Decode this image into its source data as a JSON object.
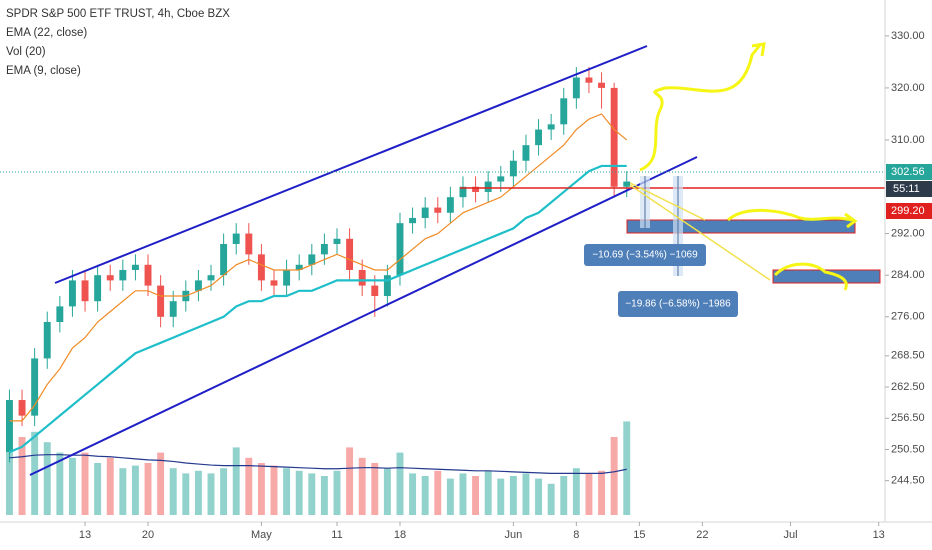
{
  "chart_data": {
    "type": "candlestick",
    "title": "SPDR S&P 500 ETF TRUST, 4h, Cboe BZX",
    "x": [
      -6,
      -5,
      -4,
      -3,
      -2,
      -1,
      0,
      1,
      2,
      3,
      4,
      5,
      6,
      7,
      8,
      9,
      10,
      11,
      12,
      13,
      14,
      15,
      16,
      17,
      18,
      19,
      20,
      21,
      22,
      23,
      24,
      25,
      26,
      27,
      28,
      29,
      30,
      31,
      32,
      33,
      34,
      35,
      36,
      37,
      38,
      39,
      40,
      41,
      42,
      43
    ],
    "open": [
      250,
      260,
      257,
      268,
      275,
      278,
      283,
      279,
      284,
      283,
      285,
      286,
      282,
      276,
      279,
      281,
      283,
      284,
      290,
      292,
      288,
      283,
      282,
      285,
      286,
      288,
      290,
      291,
      285,
      282,
      280,
      284,
      294,
      295,
      297,
      296,
      299,
      301,
      300,
      302,
      303,
      306,
      309,
      312,
      313,
      318,
      322,
      321,
      320,
      301
    ],
    "high": [
      262,
      262,
      270,
      277,
      280,
      285,
      285,
      286,
      286,
      287,
      288,
      288,
      284,
      281,
      283,
      285,
      286,
      292,
      294,
      294,
      290,
      285,
      287,
      288,
      290,
      292,
      293,
      293,
      287,
      284,
      286,
      296,
      297,
      299,
      299,
      301,
      303,
      303,
      304,
      305,
      308,
      311,
      314,
      315,
      320,
      324,
      324,
      323,
      321,
      304
    ],
    "low": [
      248,
      255,
      255,
      266,
      273,
      276,
      277,
      277,
      281,
      281,
      283,
      280,
      274,
      274,
      277,
      279,
      281,
      282,
      288,
      286,
      281,
      280,
      280,
      283,
      284,
      286,
      288,
      283,
      280,
      276,
      278,
      282,
      292,
      293,
      294,
      294,
      297,
      298,
      298,
      300,
      301,
      304,
      307,
      310,
      311,
      316,
      319,
      316,
      299,
      299
    ],
    "close": [
      260,
      257,
      268,
      275,
      278,
      283,
      279,
      284,
      283,
      285,
      286,
      282,
      276,
      279,
      281,
      283,
      284,
      290,
      292,
      288,
      283,
      282,
      285,
      286,
      288,
      290,
      291,
      285,
      282,
      280,
      284,
      294,
      295,
      297,
      296,
      299,
      301,
      300,
      302,
      303,
      306,
      309,
      312,
      313,
      318,
      322,
      321,
      320,
      301,
      302
    ],
    "up_color": "#26a69a",
    "down_color": "#ef5350",
    "ema22": {
      "name": "EMA (22, close)",
      "color": "#1fbfc9",
      "values": [
        250,
        251,
        253,
        255,
        257,
        259,
        261,
        263,
        265,
        267,
        269,
        270,
        271,
        272,
        273,
        274,
        275,
        276,
        278,
        279,
        279,
        280,
        280,
        281,
        281,
        282,
        283,
        283,
        283,
        283,
        283,
        284,
        285,
        286,
        287,
        288,
        289,
        290,
        291,
        292,
        293,
        295,
        296,
        298,
        300,
        302,
        304,
        305,
        305,
        305
      ]
    },
    "volume": {
      "name": "Vol (20)",
      "ylim": [
        0,
        250
      ],
      "values": [
        180,
        150,
        160,
        140,
        120,
        110,
        120,
        100,
        110,
        90,
        95,
        100,
        120,
        90,
        80,
        85,
        80,
        90,
        130,
        110,
        100,
        95,
        90,
        85,
        80,
        75,
        85,
        130,
        110,
        100,
        90,
        120,
        80,
        75,
        85,
        70,
        80,
        75,
        85,
        70,
        75,
        80,
        70,
        60,
        75,
        90,
        80,
        85,
        150,
        180
      ],
      "ma_color": "#24388f",
      "ma": [
        110,
        112,
        115,
        116,
        116,
        115,
        115,
        113,
        112,
        110,
        108,
        106,
        105,
        103,
        100,
        98,
        96,
        95,
        95,
        95,
        94,
        93,
        92,
        91,
        90,
        89,
        89,
        90,
        91,
        91,
        90,
        91,
        90,
        89,
        88,
        87,
        86,
        85,
        85,
        84,
        83,
        82,
        81,
        80,
        80,
        80,
        80,
        80,
        83,
        88
      ]
    },
    "ema9": {
      "name": "EMA (9, close)",
      "color": "#f08a24",
      "values": [
        256,
        256,
        259,
        263,
        266,
        270,
        272,
        275,
        277,
        279,
        281,
        281,
        280,
        280,
        280,
        281,
        282,
        284,
        286,
        287,
        286,
        285,
        285,
        285,
        286,
        287,
        288,
        287,
        286,
        285,
        285,
        287,
        289,
        291,
        292,
        294,
        296,
        297,
        298,
        299,
        301,
        303,
        305,
        307,
        309,
        312,
        314,
        315,
        312,
        310
      ]
    },
    "xlim": [
      -6.75,
      63.5
    ],
    "xticks": [
      {
        "value": 0,
        "label": "13"
      },
      {
        "value": 5,
        "label": "20"
      },
      {
        "value": 14,
        "label": "May"
      },
      {
        "value": 20,
        "label": "11"
      },
      {
        "value": 25,
        "label": "18"
      },
      {
        "value": 34,
        "label": "Jun"
      },
      {
        "value": 39,
        "label": "8"
      },
      {
        "value": 44,
        "label": "15"
      },
      {
        "value": 49,
        "label": "22"
      },
      {
        "value": 56,
        "label": "Jul"
      },
      {
        "value": 63,
        "label": "13"
      }
    ],
    "ylim": [
      237.9,
      336.9
    ],
    "yticks": [
      {
        "value": 330,
        "label": "330.00"
      },
      {
        "value": 320,
        "label": "320.00"
      },
      {
        "value": 310,
        "label": "310.00"
      },
      {
        "value": 292,
        "label": "292.00"
      },
      {
        "value": 284,
        "label": "284.00"
      },
      {
        "value": 276,
        "label": "276.00"
      },
      {
        "value": 268.5,
        "label": "268.50"
      },
      {
        "value": 262.5,
        "label": "262.50"
      },
      {
        "value": 256.5,
        "label": "256.50"
      },
      {
        "value": 250.5,
        "label": "250.50"
      },
      {
        "value": 244.5,
        "label": "244.50"
      }
    ],
    "grid": false,
    "price_badges": [
      "302.56",
      "55:11",
      "299.20"
    ],
    "annotations": [
      "−10.69 (−3.54%) −1069",
      "−19.86 (−6.58%) −1986"
    ]
  }
}
